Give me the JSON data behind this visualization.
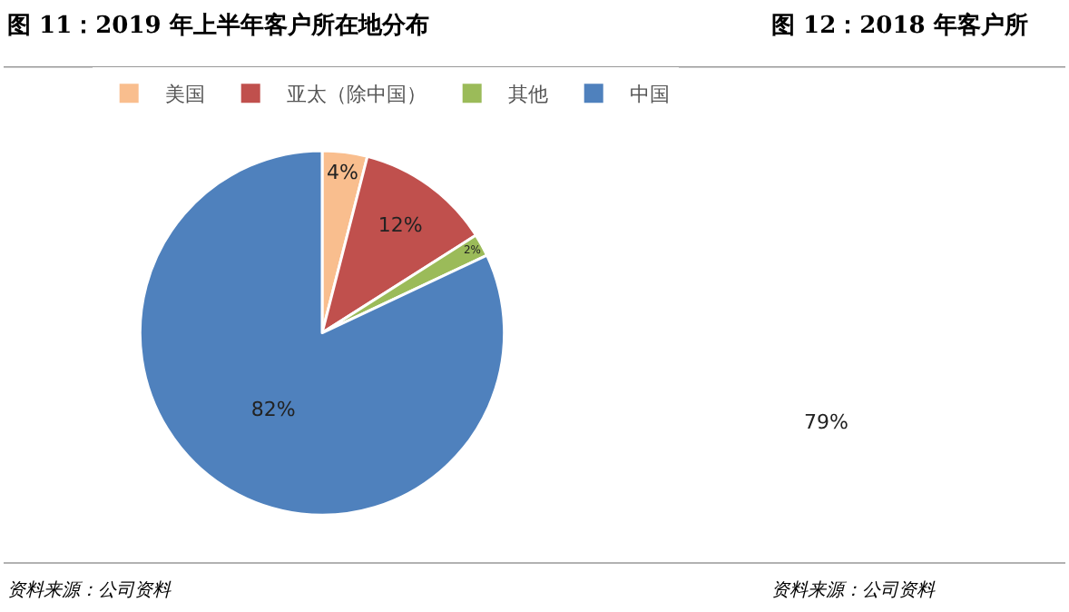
{
  "chart_data": [
    {
      "type": "pie",
      "title": "图 11：2019 年上半年客户所在地分布",
      "categories": [
        "美国",
        "亚太（除中国）",
        "其他",
        "中国"
      ],
      "values": [
        4,
        12,
        2,
        82
      ],
      "colors": [
        "#f9be8e",
        "#c0504d",
        "#9bbb59",
        "#4f81bd"
      ],
      "value_labels": [
        "4%",
        "12%",
        "2%",
        "82%"
      ],
      "legend": "top",
      "annotations": [
        "资料来源：公司资料"
      ]
    },
    {
      "type": "other",
      "title": "图 12：2018 年客户所",
      "annotations": [
        "79%",
        "资料来源：公司资料"
      ]
    }
  ]
}
